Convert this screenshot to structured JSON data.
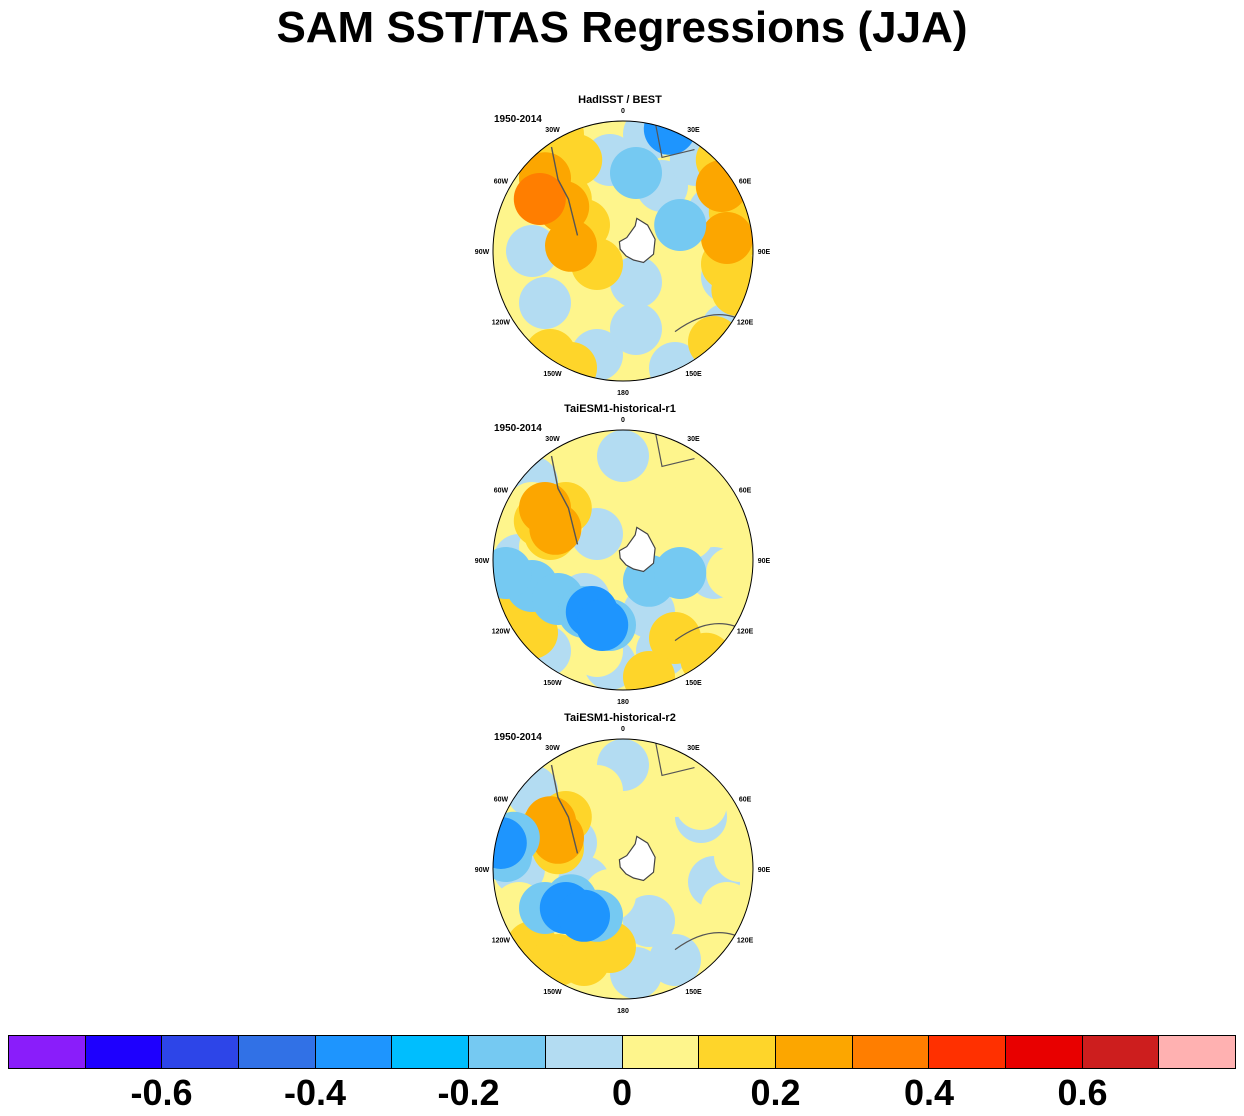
{
  "title": "SAM SST/TAS Regressions (JJA)",
  "panels": [
    {
      "title": "HadISST / BEST",
      "period": "1950-2014",
      "fields": [
        {
          "color": "#b3dcf2",
          "pts": [
            [
              0.15,
              0.5
            ],
            [
              0.55,
              0.62
            ],
            [
              0.9,
              0.6
            ],
            [
              0.65,
              0.25
            ],
            [
              0.9,
              0.8
            ],
            [
              0.7,
              0.95
            ],
            [
              0.4,
              0.9
            ],
            [
              0.2,
              0.7
            ],
            [
              0.3,
              0.98
            ],
            [
              0.55,
              0.8
            ]
          ]
        },
        {
          "color": "#b3dcf2",
          "pts": [
            [
              0.45,
              0.15
            ],
            [
              0.85,
              0.35
            ],
            [
              0.6,
              0.05
            ],
            [
              0.78,
              0.15
            ]
          ]
        },
        {
          "color": "#fed52a",
          "pts": [
            [
              0.88,
              0.15
            ],
            [
              0.93,
              0.35
            ],
            [
              0.9,
              0.55
            ],
            [
              0.94,
              0.65
            ],
            [
              0.85,
              0.85
            ],
            [
              0.92,
              0.45
            ],
            [
              0.3,
              0.95
            ],
            [
              0.22,
              0.9
            ]
          ]
        },
        {
          "color": "#fed52a",
          "pts": [
            [
              0.12,
              0.1
            ],
            [
              0.2,
              0.2
            ],
            [
              0.28,
              0.3
            ],
            [
              0.35,
              0.4
            ],
            [
              0.25,
              0.05
            ],
            [
              0.32,
              0.15
            ],
            [
              0.4,
              0.55
            ]
          ]
        },
        {
          "color": "#fca600",
          "pts": [
            [
              0.88,
              0.25
            ],
            [
              0.9,
              0.45
            ],
            [
              0.27,
              0.33
            ],
            [
              0.3,
              0.48
            ],
            [
              0.2,
              0.22
            ]
          ]
        },
        {
          "color": "#ff7e00",
          "pts": [
            [
              0.18,
              0.3
            ]
          ]
        },
        {
          "color": "#75c9f2",
          "pts": [
            [
              0.55,
              0.2
            ],
            [
              0.72,
              0.4
            ]
          ]
        },
        {
          "color": "#1e95fe",
          "pts": [
            [
              0.68,
              0.03
            ]
          ]
        }
      ]
    },
    {
      "title": "TaiESM1-historical-r1",
      "period": "1950-2014",
      "fields": [
        {
          "color": "#b3dcf2",
          "pts": [
            [
              0.1,
              0.5
            ],
            [
              0.35,
              0.65
            ],
            [
              0.6,
              0.7
            ],
            [
              0.85,
              0.55
            ],
            [
              0.15,
              0.2
            ],
            [
              0.5,
              0.1
            ],
            [
              0.2,
              0.85
            ],
            [
              0.45,
              0.9
            ],
            [
              0.65,
              0.85
            ],
            [
              0.4,
              0.4
            ]
          ]
        },
        {
          "color": "#fef58c",
          "pts": [
            [
              0.95,
              0.3
            ],
            [
              0.85,
              0.1
            ],
            [
              0.92,
              0.55
            ],
            [
              0.97,
              0.7
            ],
            [
              0.8,
              0.2
            ],
            [
              0.75,
              0.4
            ],
            [
              0.15,
              0.3
            ],
            [
              0.25,
              0.35
            ],
            [
              0.2,
              0.45
            ],
            [
              0.4,
              0.85
            ]
          ]
        },
        {
          "color": "#fed52a",
          "pts": [
            [
              0.18,
              0.35
            ],
            [
              0.22,
              0.4
            ],
            [
              0.28,
              0.3
            ],
            [
              0.1,
              0.7
            ],
            [
              0.15,
              0.78
            ],
            [
              0.7,
              0.8
            ],
            [
              0.82,
              0.88
            ],
            [
              0.6,
              0.95
            ]
          ]
        },
        {
          "color": "#fca600",
          "pts": [
            [
              0.24,
              0.38
            ],
            [
              0.2,
              0.3
            ]
          ]
        },
        {
          "color": "#75c9f2",
          "pts": [
            [
              0.15,
              0.6
            ],
            [
              0.25,
              0.65
            ],
            [
              0.35,
              0.7
            ],
            [
              0.45,
              0.75
            ],
            [
              0.05,
              0.55
            ],
            [
              0.6,
              0.58
            ],
            [
              0.72,
              0.55
            ]
          ]
        },
        {
          "color": "#1e95fe",
          "pts": [
            [
              0.38,
              0.7
            ],
            [
              0.42,
              0.75
            ]
          ]
        }
      ]
    },
    {
      "title": "TaiESM1-historical-r2",
      "period": "1950-2014",
      "fields": [
        {
          "color": "#b3dcf2",
          "pts": [
            [
              0.1,
              0.5
            ],
            [
              0.35,
              0.55
            ],
            [
              0.6,
              0.7
            ],
            [
              0.85,
              0.55
            ],
            [
              0.15,
              0.2
            ],
            [
              0.5,
              0.1
            ],
            [
              0.3,
              0.4
            ],
            [
              0.7,
              0.85
            ],
            [
              0.55,
              0.9
            ],
            [
              0.8,
              0.3
            ]
          ]
        },
        {
          "color": "#fef58c",
          "pts": [
            [
              0.75,
              0.1
            ],
            [
              0.8,
              0.25
            ],
            [
              0.7,
              0.2
            ],
            [
              0.55,
              0.4
            ],
            [
              0.9,
              0.65
            ],
            [
              0.95,
              0.45
            ],
            [
              0.15,
              0.9
            ],
            [
              0.35,
              0.95
            ],
            [
              0.2,
              0.35
            ],
            [
              0.1,
              0.65
            ],
            [
              0.45,
              0.6
            ],
            [
              0.4,
              0.2
            ]
          ]
        },
        {
          "color": "#fed52a",
          "pts": [
            [
              0.2,
              0.35
            ],
            [
              0.25,
              0.42
            ],
            [
              0.28,
              0.3
            ],
            [
              0.15,
              0.8
            ],
            [
              0.25,
              0.85
            ],
            [
              0.35,
              0.85
            ],
            [
              0.45,
              0.8
            ]
          ]
        },
        {
          "color": "#fca600",
          "pts": [
            [
              0.25,
              0.38
            ],
            [
              0.22,
              0.32
            ]
          ]
        },
        {
          "color": "#75c9f2",
          "pts": [
            [
              0.2,
              0.65
            ],
            [
              0.3,
              0.62
            ],
            [
              0.4,
              0.68
            ],
            [
              0.05,
              0.45
            ],
            [
              0.08,
              0.38
            ]
          ]
        },
        {
          "color": "#1e95fe",
          "pts": [
            [
              0.28,
              0.65
            ],
            [
              0.35,
              0.68
            ],
            [
              0.03,
              0.4
            ]
          ]
        }
      ]
    }
  ],
  "longitude_labels": [
    "0",
    "30E",
    "60E",
    "90E",
    "120E",
    "150E",
    "180",
    "150W",
    "120W",
    "90W",
    "60W",
    "30W"
  ],
  "colorbar": {
    "colors": [
      "#8a1dfa",
      "#1e00fe",
      "#2d45e8",
      "#3171e6",
      "#1e95fe",
      "#00befe",
      "#75c9f2",
      "#b3dcf2",
      "#fef58c",
      "#fed52a",
      "#fca600",
      "#ff7e00",
      "#ff3000",
      "#e80000",
      "#cd1e1e",
      "#ffb1b1"
    ],
    "tick_labels": [
      "-0.6",
      "-0.4",
      "-0.2",
      "0",
      "0.2",
      "0.4",
      "0.6"
    ]
  }
}
